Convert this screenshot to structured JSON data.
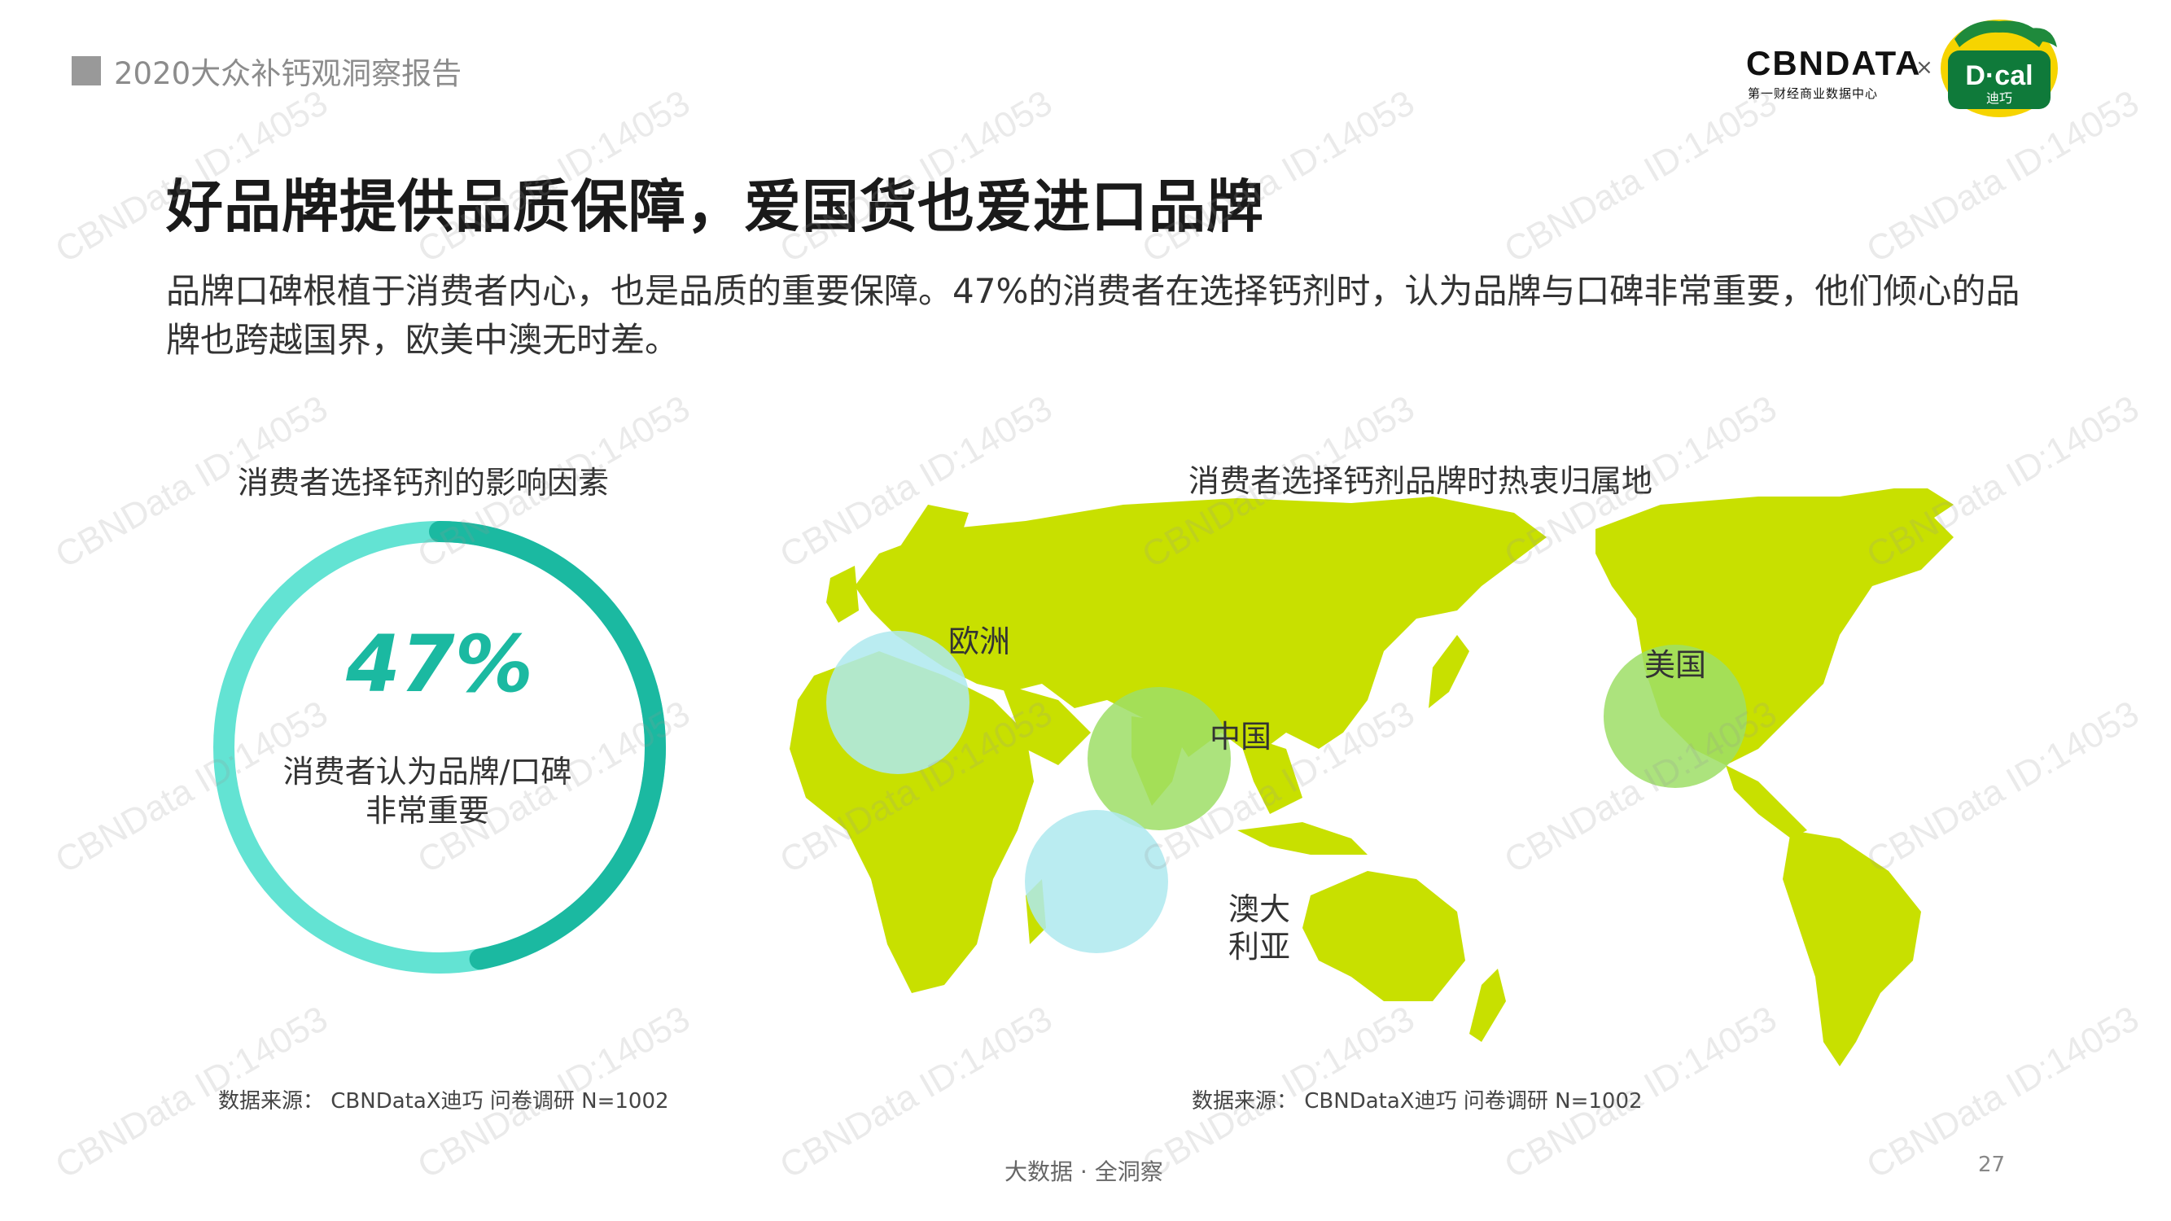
{
  "header": {
    "report_title": "2020大众补钙观洞察报告"
  },
  "logos": {
    "cbn_name": "CBNDATA",
    "cbn_sub": "第一财经商业数据中心",
    "times": "×",
    "dcal_name": "D·cal",
    "dcal_sub": "迪巧"
  },
  "page": {
    "title": "好品牌提供品质保障，爱国货也爱进口品牌",
    "description": "品牌口碑根植于消费者内心，也是品质的重要保障。47%的消费者在选择钙剂时，认为品牌与口碑非常重要，他们倾心的品牌也跨越国界，欧美中澳无时差。"
  },
  "left_panel": {
    "subtitle": "消费者选择钙剂的影响因素",
    "value_text": "47%",
    "label_line1": "消费者认为品牌/口碑",
    "label_line2": "非常重要",
    "source": "数据来源： CBNDataX迪巧 问卷调研 N=1002"
  },
  "right_panel": {
    "subtitle": "消费者选择钙剂品牌时热衷归属地",
    "source": "数据来源： CBNDataX迪巧 问卷调研 N=1002"
  },
  "regions": {
    "europe": "欧洲",
    "china": "中国",
    "usa": "美国",
    "australia_line1": "澳大",
    "australia_line2": "利亚"
  },
  "footer": {
    "slogan": "大数据 · 全洞察",
    "page_number": "27"
  },
  "watermark_text": "CBNData ID:14053",
  "colors": {
    "ring_light": "#63e3d3",
    "ring_dark": "#1bb9a1",
    "map_fill": "#c8e000",
    "bubble_blue": "#aee9ee",
    "bubble_green": "#9ede66"
  },
  "chart_data": {
    "type": "pie",
    "categories": [
      "消费者认为品牌/口碑非常重要",
      ""
    ],
    "values": [
      47,
      53
    ],
    "title": "消费者选择钙剂的影响因素"
  }
}
